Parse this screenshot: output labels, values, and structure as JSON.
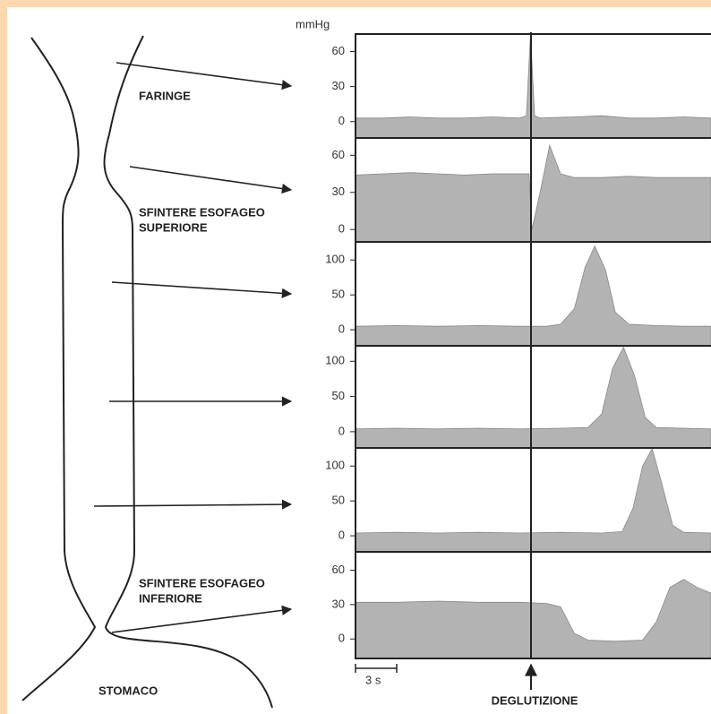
{
  "labels": {
    "unit": "mmHg",
    "pharynx": "FARINGE",
    "ues_1": "SFINTERE ESOFAGEO",
    "ues_2": "SUPERIORE",
    "les_1": "SFINTERE ESOFAGEO",
    "les_2": "INFERIORE",
    "stomach": "STOMACO",
    "scale": "3 s",
    "swallow": "DEGLUTIZIONE"
  },
  "chart_data": [
    {
      "type": "area",
      "color": "#b3b3b3",
      "xlim": [
        0,
        26
      ],
      "ylim": [
        -14,
        75
      ],
      "yticks": [
        0,
        30,
        60
      ],
      "x": [
        0,
        2,
        4,
        6,
        8,
        10,
        12,
        12.5,
        12.8,
        13.1,
        13.5,
        16,
        18,
        20,
        22,
        24,
        26
      ],
      "values": [
        3,
        3,
        4,
        3,
        3,
        4,
        3,
        5,
        75,
        5,
        3,
        4,
        5,
        3,
        3,
        4,
        3
      ]
    },
    {
      "type": "area",
      "color": "#b3b3b3",
      "xlim": [
        0,
        26
      ],
      "ylim": [
        -10,
        74
      ],
      "yticks": [
        0,
        30,
        60
      ],
      "x": [
        0,
        2,
        4,
        6,
        8,
        10,
        12,
        12.7,
        12.9,
        13.5,
        14.2,
        15,
        16,
        18,
        20,
        22,
        24,
        26
      ],
      "values": [
        44,
        45,
        46,
        45,
        44,
        45,
        45,
        45,
        0,
        30,
        68,
        45,
        42,
        42,
        43,
        42,
        42,
        42
      ]
    },
    {
      "type": "area",
      "color": "#b3b3b3",
      "xlim": [
        0,
        26
      ],
      "ylim": [
        -23,
        126
      ],
      "yticks": [
        0,
        50,
        100
      ],
      "x": [
        0,
        3,
        6,
        9,
        12,
        14,
        15,
        16,
        16.8,
        17.5,
        18.3,
        19,
        20,
        22,
        24,
        26
      ],
      "values": [
        5,
        6,
        5,
        6,
        5,
        5,
        8,
        30,
        90,
        120,
        85,
        25,
        8,
        6,
        5,
        5
      ]
    },
    {
      "type": "area",
      "color": "#b3b3b3",
      "xlim": [
        0,
        26
      ],
      "ylim": [
        -23,
        122
      ],
      "yticks": [
        0,
        50,
        100
      ],
      "x": [
        0,
        3,
        6,
        9,
        12,
        15,
        17,
        18,
        18.8,
        19.6,
        20.4,
        21.2,
        22,
        24,
        26
      ],
      "values": [
        4,
        5,
        4,
        5,
        4,
        5,
        6,
        25,
        90,
        120,
        80,
        20,
        6,
        5,
        4
      ]
    },
    {
      "type": "area",
      "color": "#b3b3b3",
      "xlim": [
        0,
        26
      ],
      "ylim": [
        -23,
        126
      ],
      "yticks": [
        0,
        50,
        100
      ],
      "x": [
        0,
        3,
        6,
        9,
        12,
        15,
        18,
        19.5,
        20.3,
        21,
        21.7,
        22.4,
        23.2,
        24,
        26
      ],
      "values": [
        4,
        5,
        4,
        5,
        4,
        5,
        4,
        6,
        40,
        100,
        125,
        75,
        15,
        5,
        4
      ]
    },
    {
      "type": "area",
      "color": "#b3b3b3",
      "xlim": [
        0,
        26
      ],
      "ylim": [
        -17,
        76
      ],
      "yticks": [
        0,
        30,
        60
      ],
      "x": [
        0,
        3,
        6,
        9,
        12,
        14,
        15,
        16,
        17,
        19,
        21,
        22,
        23,
        24,
        25,
        26
      ],
      "values": [
        32,
        32,
        33,
        32,
        32,
        31,
        28,
        5,
        -1,
        -2,
        -1,
        15,
        45,
        52,
        45,
        40
      ]
    }
  ]
}
